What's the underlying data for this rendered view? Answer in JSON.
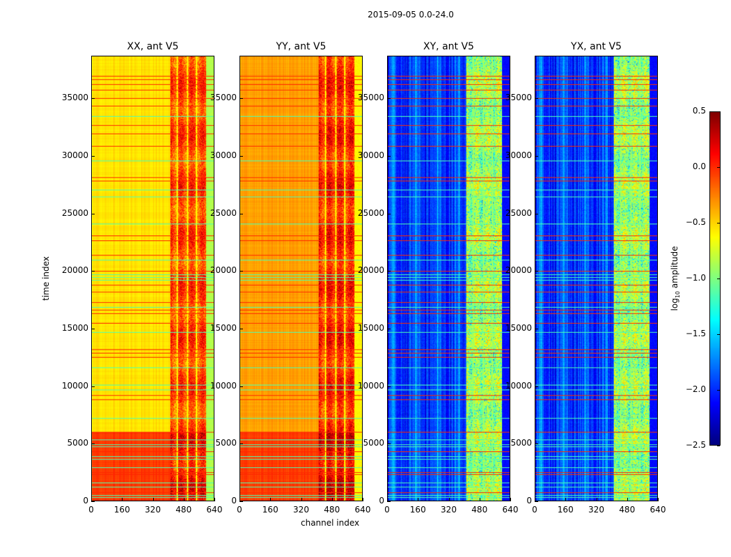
{
  "chart_data": {
    "type": "heatmap",
    "title": "2015-09-05 0.0-24.0",
    "xlabel": "channel index",
    "ylabel": "time index",
    "xlim": [
      0,
      640
    ],
    "ylim": [
      0,
      38700
    ],
    "xticks": [
      "0",
      "160",
      "320",
      "480",
      "640"
    ],
    "xtick_values": [
      0,
      160,
      320,
      480,
      640
    ],
    "yticks": [
      "0",
      "5000",
      "10000",
      "15000",
      "20000",
      "25000",
      "30000",
      "35000"
    ],
    "ytick_values": [
      0,
      5000,
      10000,
      15000,
      20000,
      25000,
      30000,
      35000
    ],
    "colormap": "jet",
    "colorbar": {
      "label_prefix": "log",
      "label_sub": "10",
      "label_suffix": " amplitude",
      "range": [
        -2.5,
        0.5
      ],
      "ticks": [
        "0.5",
        "0.0",
        "−0.5",
        "−1.0",
        "−1.5",
        "−2.0",
        "−2.5"
      ],
      "tick_values": [
        0.5,
        0.0,
        -0.5,
        -1.0,
        -1.5,
        -2.0,
        -2.5
      ]
    },
    "rfi_band_channels": [
      410,
      600
    ],
    "bright_channels": [
      447,
      502,
      549
    ],
    "high_block_time": [
      0,
      6000
    ],
    "flagged_rows_high": [
      700,
      2300,
      2500,
      4300,
      6000,
      8800,
      9200,
      12500,
      12900,
      13200,
      15500,
      16300,
      16600,
      17300,
      18200,
      18800,
      20000,
      21400,
      22700,
      23100,
      27900,
      28200,
      30900,
      32000,
      32700,
      34400,
      35100,
      35800,
      36300,
      36700,
      37000
    ],
    "flagged_rows_low": [
      300,
      500,
      1200,
      1600,
      2900,
      3600,
      3900,
      4700,
      4900,
      5300,
      7200,
      9700,
      10100,
      11600,
      14700,
      16900,
      19200,
      19500,
      19700,
      21000,
      24100,
      26500,
      27100,
      29600,
      33500
    ],
    "panels": [
      {
        "title": "XX, ant V5",
        "base_log_amp": -0.55,
        "block_log_amp": -0.05,
        "band_log_amp": -0.1,
        "edge_log_amp": -0.85
      },
      {
        "title": "YY, ant V5",
        "base_log_amp": -0.35,
        "block_log_amp": -0.05,
        "band_log_amp": 0.0,
        "edge_log_amp": -0.6
      },
      {
        "title": "XY, ant V5",
        "base_log_amp": -2.05,
        "block_log_amp": -2.0,
        "band_log_amp": -0.85,
        "edge_log_amp": -2.1
      },
      {
        "title": "YX, ant V5",
        "base_log_amp": -2.05,
        "block_log_amp": -2.0,
        "band_log_amp": -0.85,
        "edge_log_amp": -2.1
      }
    ]
  }
}
